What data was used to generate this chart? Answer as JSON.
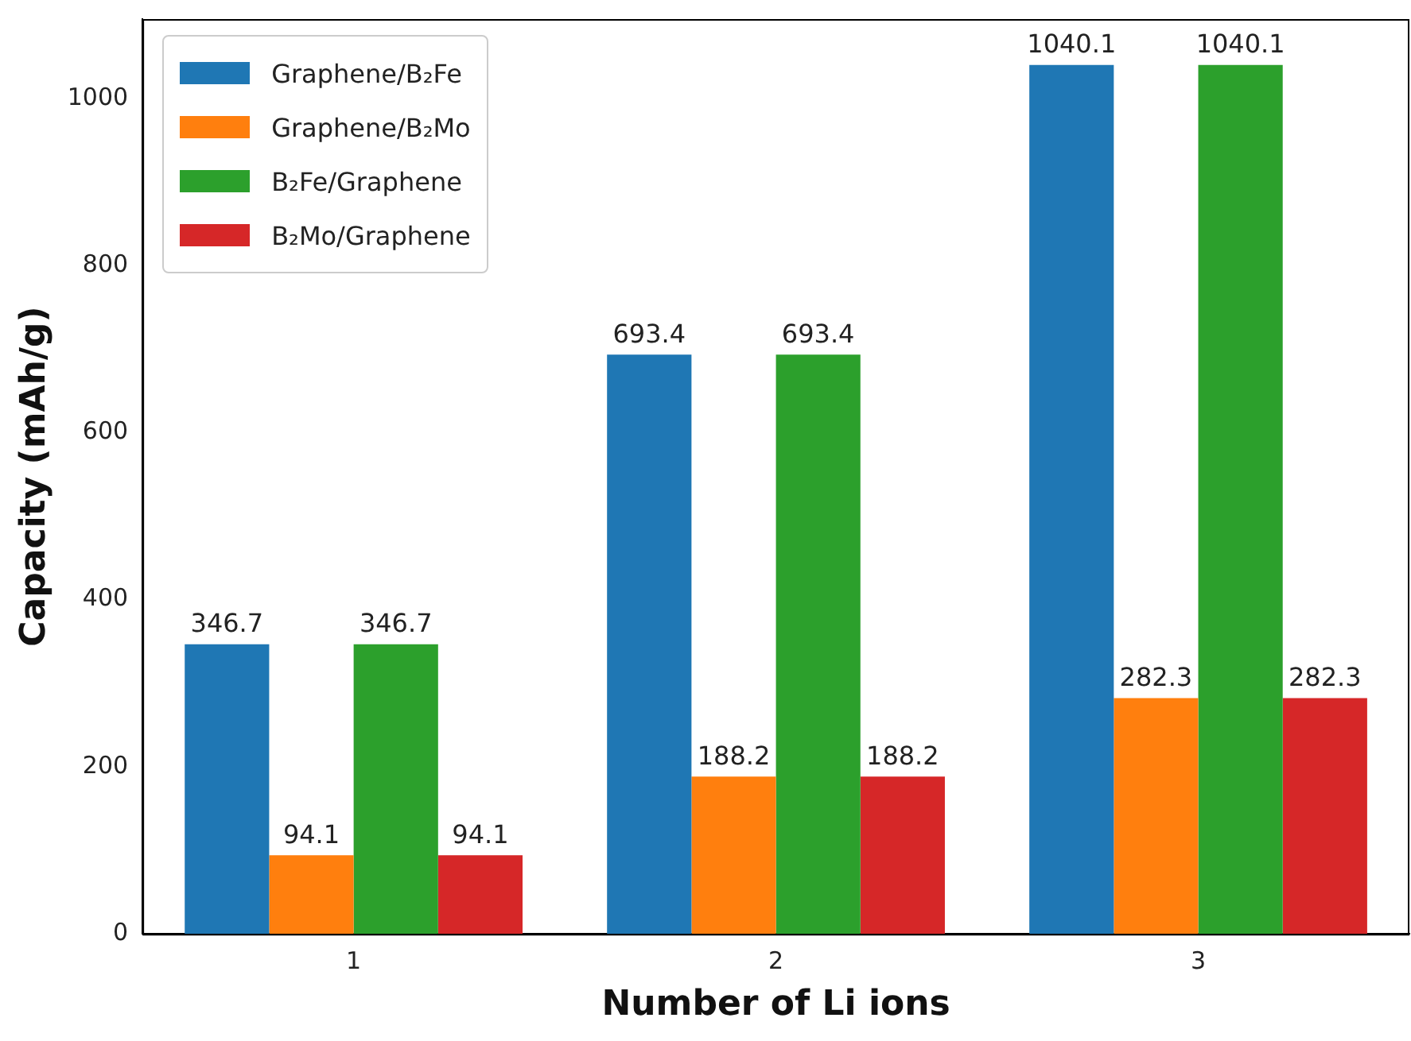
{
  "chart_data": {
    "type": "bar",
    "xlabel": "Number of Li ions",
    "ylabel": "Capacity (mAh/g)",
    "categories": [
      "1",
      "2",
      "3"
    ],
    "series": [
      {
        "name": "Graphene/B₂Fe",
        "color": "#1f77b4",
        "values": [
          346.7,
          693.4,
          1040.1
        ]
      },
      {
        "name": "Graphene/B₂Mo",
        "color": "#ff7f0e",
        "values": [
          94.1,
          188.2,
          282.3
        ]
      },
      {
        "name": "B₂Fe/Graphene",
        "color": "#2ca02c",
        "values": [
          346.7,
          693.4,
          1040.1
        ]
      },
      {
        "name": "B₂Mo/Graphene",
        "color": "#d62728",
        "values": [
          94.1,
          188.2,
          282.3
        ]
      }
    ],
    "ylim": [
      0,
      1095
    ],
    "yticks": [
      0,
      200,
      400,
      600,
      800,
      1000
    ],
    "grid": false,
    "legend": "top left",
    "data_labels": true
  }
}
